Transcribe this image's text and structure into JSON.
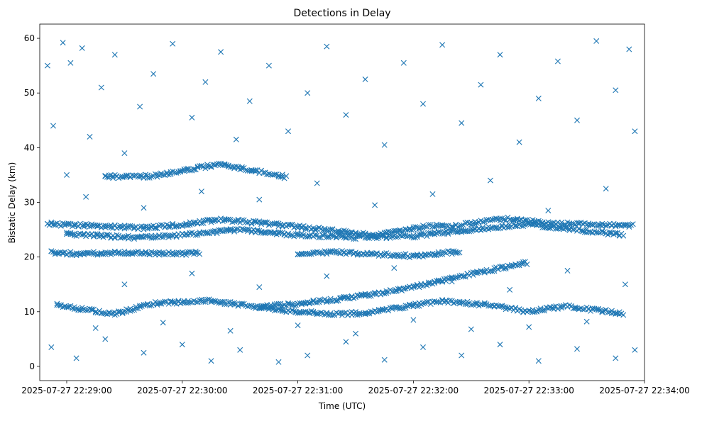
{
  "chart_data": {
    "type": "scatter",
    "title": "Detections in Delay",
    "xlabel": "Time (UTC)",
    "ylabel": "Bistatic Delay (km)",
    "marker": "x",
    "color": "#1f77b4",
    "grid": false,
    "legend": "none",
    "xlim": [
      "2025-07-27 22:28:46",
      "2025-07-27 22:34:00"
    ],
    "ylim": [
      -2.6,
      62.6
    ],
    "x_ticks": [
      "2025-07-27 22:29:00",
      "2025-07-27 22:30:00",
      "2025-07-27 22:31:00",
      "2025-07-27 22:32:00",
      "2025-07-27 22:33:00",
      "2025-07-27 22:34:00"
    ],
    "y_ticks": [
      0,
      10,
      20,
      30,
      40,
      50,
      60
    ],
    "tracks": [
      {
        "points": [
          [
            "2025-07-27 22:28:50",
            26.1
          ],
          [
            "2025-07-27 22:29:40",
            25.3
          ],
          [
            "2025-07-27 22:30:00",
            25.9
          ],
          [
            "2025-07-27 22:30:20",
            26.9
          ],
          [
            "2025-07-27 22:31:00",
            25.6
          ],
          [
            "2025-07-27 22:31:40",
            24.0
          ],
          [
            "2025-07-27 22:32:10",
            25.8
          ],
          [
            "2025-07-27 22:32:20",
            25.5
          ],
          [
            "2025-07-27 22:32:30",
            26.2
          ],
          [
            "2025-07-27 22:32:50",
            27.0
          ],
          [
            "2025-07-27 22:33:10",
            26.2
          ],
          [
            "2025-07-27 22:33:55",
            25.8
          ]
        ]
      },
      {
        "points": [
          [
            "2025-07-27 22:29:00",
            24.2
          ],
          [
            "2025-07-27 22:29:35",
            23.6
          ],
          [
            "2025-07-27 22:30:00",
            24.0
          ],
          [
            "2025-07-27 22:30:30",
            25.0
          ],
          [
            "2025-07-27 22:31:00",
            24.0
          ],
          [
            "2025-07-27 22:31:30",
            23.6
          ],
          [
            "2025-07-27 22:32:00",
            23.8
          ],
          [
            "2025-07-27 22:32:30",
            25.0
          ],
          [
            "2025-07-27 22:33:00",
            26.0
          ],
          [
            "2025-07-27 22:33:50",
            24.0
          ]
        ]
      },
      {
        "points": [
          [
            "2025-07-27 22:28:55",
            11.2
          ],
          [
            "2025-07-27 22:29:25",
            9.6
          ],
          [
            "2025-07-27 22:29:45",
            11.5
          ],
          [
            "2025-07-27 22:30:15",
            12.0
          ],
          [
            "2025-07-27 22:30:25",
            11.5
          ],
          [
            "2025-07-27 22:30:55",
            10.2
          ],
          [
            "2025-07-27 22:31:15",
            9.6
          ],
          [
            "2025-07-27 22:31:35",
            9.7
          ],
          [
            "2025-07-27 22:32:15",
            12.0
          ],
          [
            "2025-07-27 22:32:40",
            11.2
          ],
          [
            "2025-07-27 22:33:00",
            10.0
          ],
          [
            "2025-07-27 22:33:20",
            11.0
          ],
          [
            "2025-07-27 22:33:50",
            9.6
          ]
        ]
      },
      {
        "points": [
          [
            "2025-07-27 22:30:40",
            10.8
          ],
          [
            "2025-07-27 22:31:00",
            11.5
          ],
          [
            "2025-07-27 22:31:20",
            12.2
          ],
          [
            "2025-07-27 22:31:40",
            13.2
          ],
          [
            "2025-07-27 22:32:00",
            14.5
          ],
          [
            "2025-07-27 22:32:20",
            16.0
          ],
          [
            "2025-07-27 22:32:40",
            17.6
          ],
          [
            "2025-07-27 22:33:00",
            19.0
          ]
        ]
      },
      {
        "points": [
          [
            "2025-07-27 22:28:52",
            20.8
          ],
          [
            "2025-07-27 22:29:05",
            20.6
          ],
          [
            "2025-07-27 22:29:30",
            20.8
          ],
          [
            "2025-07-27 22:30:00",
            20.6
          ],
          [
            "2025-07-27 22:30:10",
            20.8
          ]
        ]
      },
      {
        "points": [
          [
            "2025-07-27 22:31:00",
            20.6
          ],
          [
            "2025-07-27 22:31:20",
            20.9
          ],
          [
            "2025-07-27 22:32:00",
            20.2
          ],
          [
            "2025-07-27 22:32:25",
            21.0
          ]
        ]
      },
      {
        "points": [
          [
            "2025-07-27 22:29:20",
            34.7
          ],
          [
            "2025-07-27 22:29:45",
            34.8
          ],
          [
            "2025-07-27 22:30:20",
            37.0
          ],
          [
            "2025-07-27 22:30:55",
            34.6
          ]
        ]
      }
    ],
    "scatter_points": [
      [
        "2025-07-27 22:28:50",
        55.0
      ],
      [
        "2025-07-27 22:28:53",
        44.0
      ],
      [
        "2025-07-27 22:28:58",
        59.2
      ],
      [
        "2025-07-27 22:29:02",
        55.5
      ],
      [
        "2025-07-27 22:29:08",
        58.2
      ],
      [
        "2025-07-27 22:29:12",
        42.0
      ],
      [
        "2025-07-27 22:29:18",
        51.0
      ],
      [
        "2025-07-27 22:29:25",
        57.0
      ],
      [
        "2025-07-27 22:29:30",
        39.0
      ],
      [
        "2025-07-27 22:29:38",
        47.5
      ],
      [
        "2025-07-27 22:29:45",
        53.5
      ],
      [
        "2025-07-27 22:29:55",
        59.0
      ],
      [
        "2025-07-27 22:30:05",
        45.5
      ],
      [
        "2025-07-27 22:30:12",
        52.0
      ],
      [
        "2025-07-27 22:30:20",
        57.5
      ],
      [
        "2025-07-27 22:30:28",
        41.5
      ],
      [
        "2025-07-27 22:30:35",
        48.5
      ],
      [
        "2025-07-27 22:30:45",
        55.0
      ],
      [
        "2025-07-27 22:30:55",
        43.0
      ],
      [
        "2025-07-27 22:31:05",
        50.0
      ],
      [
        "2025-07-27 22:31:15",
        58.5
      ],
      [
        "2025-07-27 22:31:25",
        46.0
      ],
      [
        "2025-07-27 22:31:35",
        52.5
      ],
      [
        "2025-07-27 22:31:45",
        40.5
      ],
      [
        "2025-07-27 22:31:55",
        55.5
      ],
      [
        "2025-07-27 22:32:05",
        48.0
      ],
      [
        "2025-07-27 22:32:15",
        58.8
      ],
      [
        "2025-07-27 22:32:25",
        44.5
      ],
      [
        "2025-07-27 22:32:35",
        51.5
      ],
      [
        "2025-07-27 22:32:45",
        57.0
      ],
      [
        "2025-07-27 22:32:55",
        41.0
      ],
      [
        "2025-07-27 22:33:05",
        49.0
      ],
      [
        "2025-07-27 22:33:15",
        55.8
      ],
      [
        "2025-07-27 22:33:25",
        45.0
      ],
      [
        "2025-07-27 22:33:35",
        59.5
      ],
      [
        "2025-07-27 22:33:45",
        50.5
      ],
      [
        "2025-07-27 22:33:52",
        58.0
      ],
      [
        "2025-07-27 22:33:55",
        43.0
      ],
      [
        "2025-07-27 22:29:00",
        35.0
      ],
      [
        "2025-07-27 22:29:10",
        31.0
      ],
      [
        "2025-07-27 22:29:40",
        29.0
      ],
      [
        "2025-07-27 22:30:10",
        32.0
      ],
      [
        "2025-07-27 22:30:40",
        30.5
      ],
      [
        "2025-07-27 22:31:10",
        33.5
      ],
      [
        "2025-07-27 22:31:40",
        29.5
      ],
      [
        "2025-07-27 22:32:10",
        31.5
      ],
      [
        "2025-07-27 22:32:40",
        34.0
      ],
      [
        "2025-07-27 22:33:10",
        28.5
      ],
      [
        "2025-07-27 22:33:40",
        32.5
      ],
      [
        "2025-07-27 22:28:52",
        3.5
      ],
      [
        "2025-07-27 22:29:05",
        1.5
      ],
      [
        "2025-07-27 22:29:20",
        5.0
      ],
      [
        "2025-07-27 22:29:40",
        2.5
      ],
      [
        "2025-07-27 22:30:00",
        4.0
      ],
      [
        "2025-07-27 22:30:15",
        1.0
      ],
      [
        "2025-07-27 22:30:30",
        3.0
      ],
      [
        "2025-07-27 22:30:50",
        0.8
      ],
      [
        "2025-07-27 22:31:05",
        2.0
      ],
      [
        "2025-07-27 22:31:25",
        4.5
      ],
      [
        "2025-07-27 22:31:45",
        1.2
      ],
      [
        "2025-07-27 22:32:05",
        3.5
      ],
      [
        "2025-07-27 22:32:25",
        2.0
      ],
      [
        "2025-07-27 22:32:45",
        4.0
      ],
      [
        "2025-07-27 22:33:05",
        1.0
      ],
      [
        "2025-07-27 22:33:25",
        3.2
      ],
      [
        "2025-07-27 22:33:45",
        1.5
      ],
      [
        "2025-07-27 22:33:55",
        3.0
      ],
      [
        "2025-07-27 22:29:15",
        7.0
      ],
      [
        "2025-07-27 22:29:50",
        8.0
      ],
      [
        "2025-07-27 22:30:25",
        6.5
      ],
      [
        "2025-07-27 22:31:00",
        7.5
      ],
      [
        "2025-07-27 22:31:30",
        6.0
      ],
      [
        "2025-07-27 22:32:00",
        8.5
      ],
      [
        "2025-07-27 22:32:30",
        6.8
      ],
      [
        "2025-07-27 22:33:00",
        7.2
      ],
      [
        "2025-07-27 22:33:30",
        8.2
      ],
      [
        "2025-07-27 22:29:30",
        15.0
      ],
      [
        "2025-07-27 22:30:05",
        17.0
      ],
      [
        "2025-07-27 22:30:40",
        14.5
      ],
      [
        "2025-07-27 22:31:15",
        16.5
      ],
      [
        "2025-07-27 22:31:50",
        18.0
      ],
      [
        "2025-07-27 22:32:20",
        15.5
      ],
      [
        "2025-07-27 22:32:50",
        14.0
      ],
      [
        "2025-07-27 22:33:20",
        17.5
      ],
      [
        "2025-07-27 22:33:50",
        15.0
      ]
    ]
  }
}
